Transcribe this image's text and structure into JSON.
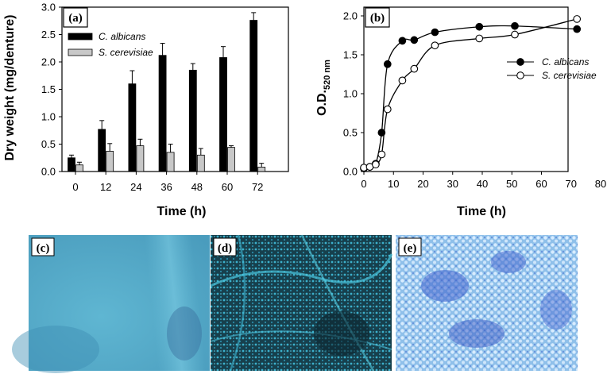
{
  "chart_data": [
    {
      "type": "bar",
      "panel_label": "(a)",
      "xlabel": "Time (h)",
      "ylabel": "Dry weight (mg/denture)",
      "categories": [
        "0",
        "12",
        "24",
        "36",
        "48",
        "60",
        "72"
      ],
      "ylim": [
        0,
        3.0
      ],
      "yticks": [
        "0.0",
        "0.5",
        "1.0",
        "1.5",
        "2.0",
        "2.5",
        "3.0"
      ],
      "legend_position": "top-left",
      "series": [
        {
          "name": "C. albicans",
          "color": "#000000",
          "values": [
            0.25,
            0.77,
            1.6,
            2.12,
            1.85,
            2.08,
            2.76
          ],
          "errors": [
            0.05,
            0.16,
            0.24,
            0.22,
            0.12,
            0.2,
            0.14
          ]
        },
        {
          "name": "S. cerevisiae",
          "color": "#c8c8c8",
          "values": [
            0.12,
            0.37,
            0.47,
            0.35,
            0.3,
            0.44,
            0.08
          ],
          "errors": [
            0.05,
            0.14,
            0.12,
            0.15,
            0.12,
            0.03,
            0.07
          ]
        }
      ]
    },
    {
      "type": "line",
      "panel_label": "(b)",
      "xlabel": "Time (h)",
      "ylabel_main": "O.D.",
      "ylabel_sub": "520 nm",
      "xlim": [
        0,
        80
      ],
      "ylim": [
        0,
        2.0
      ],
      "xticks": [
        "0",
        "10",
        "20",
        "30",
        "40",
        "50",
        "60",
        "70",
        "80"
      ],
      "yticks": [
        "0.0",
        "0.5",
        "1.0",
        "1.5",
        "2.0"
      ],
      "legend_position": "right",
      "series": [
        {
          "name": "C. albicans",
          "marker": "filled-circle",
          "x": [
            0,
            2,
            4,
            6,
            8,
            13,
            17,
            24,
            39,
            51,
            72
          ],
          "y": [
            0.04,
            0.06,
            0.1,
            0.5,
            1.38,
            1.68,
            1.69,
            1.79,
            1.86,
            1.87,
            1.83
          ]
        },
        {
          "name": "S. cerevisiae",
          "marker": "open-circle",
          "x": [
            0,
            2,
            4,
            6,
            8,
            13,
            17,
            24,
            39,
            51,
            72
          ],
          "y": [
            0.05,
            0.06,
            0.09,
            0.22,
            0.8,
            1.17,
            1.32,
            1.62,
            1.71,
            1.76,
            1.96
          ]
        }
      ]
    }
  ],
  "photos": [
    {
      "label": "(c)",
      "base_color": "#4fa8c6",
      "accent_color": "#3b7fb0"
    },
    {
      "label": "(d)",
      "base_color": "#14343f",
      "accent_color": "#4cc6de"
    },
    {
      "label": "(e)",
      "base_color": "#7fb4e2",
      "accent_color": "#3c58c8"
    }
  ]
}
